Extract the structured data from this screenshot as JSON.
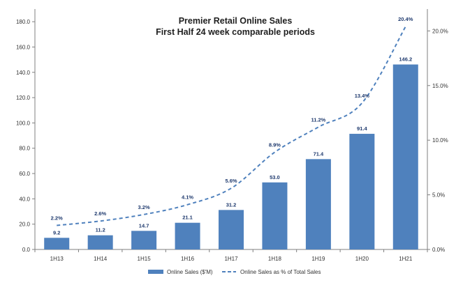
{
  "chart_data": {
    "type": "bar",
    "title": "Premier Retail Online Sales",
    "subtitle": "First Half  24 week  comparable periods",
    "categories": [
      "1H13",
      "1H14",
      "1H15",
      "1H16",
      "1H17",
      "1H18",
      "1H19",
      "1H20",
      "1H21"
    ],
    "series": [
      {
        "name": "Online Sales ($'M)",
        "type": "bar",
        "axis": "left",
        "color": "#4f81bd",
        "values": [
          9.2,
          11.2,
          14.7,
          21.1,
          31.2,
          53.0,
          71.4,
          91.4,
          146.2
        ],
        "labels": [
          "9.2",
          "11.2",
          "14.7",
          "21.1",
          "31.2",
          "53.0",
          "71.4",
          "91.4",
          "146.2"
        ]
      },
      {
        "name": "Online Sales as % of Total Sales",
        "type": "line",
        "style": "dashed",
        "axis": "right",
        "color": "#4f81bd",
        "values": [
          2.2,
          2.6,
          3.2,
          4.1,
          5.6,
          8.9,
          11.2,
          13.4,
          20.4
        ],
        "labels": [
          "2.2%",
          "2.6%",
          "3.2%",
          "4.1%",
          "5.6%",
          "8.9%",
          "11.2%",
          "13.4%",
          "20.4%"
        ]
      }
    ],
    "ylim": [
      0,
      190
    ],
    "yticks": [
      "0.0",
      "20.0",
      "40.0",
      "60.0",
      "80.0",
      "100.0",
      "120.0",
      "140.0",
      "160.0",
      "180.0"
    ],
    "y2lim": [
      0,
      22
    ],
    "y2ticks": [
      "0.0%",
      "5.0%",
      "10.0%",
      "15.0%",
      "20.0%"
    ],
    "grid": false,
    "legend": "bottom"
  }
}
